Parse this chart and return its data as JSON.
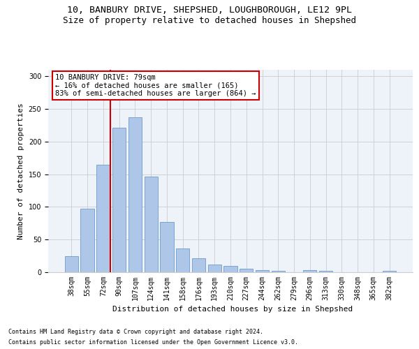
{
  "title1": "10, BANBURY DRIVE, SHEPSHED, LOUGHBOROUGH, LE12 9PL",
  "title2": "Size of property relative to detached houses in Shepshed",
  "xlabel": "Distribution of detached houses by size in Shepshed",
  "ylabel": "Number of detached properties",
  "bar_labels": [
    "38sqm",
    "55sqm",
    "72sqm",
    "90sqm",
    "107sqm",
    "124sqm",
    "141sqm",
    "158sqm",
    "176sqm",
    "193sqm",
    "210sqm",
    "227sqm",
    "244sqm",
    "262sqm",
    "279sqm",
    "296sqm",
    "313sqm",
    "330sqm",
    "348sqm",
    "365sqm",
    "382sqm"
  ],
  "bar_values": [
    25,
    97,
    165,
    221,
    237,
    146,
    77,
    36,
    21,
    12,
    10,
    5,
    3,
    2,
    0,
    3,
    2,
    0,
    0,
    0,
    2
  ],
  "bar_color": "#aec6e8",
  "bar_edge_color": "#5a8fc4",
  "vline_x_idx": 2,
  "vline_color": "#cc0000",
  "annotation_text": "10 BANBURY DRIVE: 79sqm\n← 16% of detached houses are smaller (165)\n83% of semi-detached houses are larger (864) →",
  "annotation_box_color": "#ffffff",
  "annotation_box_edge": "#cc0000",
  "ylim": [
    0,
    310
  ],
  "yticks": [
    0,
    50,
    100,
    150,
    200,
    250,
    300
  ],
  "grid_color": "#cccccc",
  "bg_color": "#eef2f9",
  "footer1": "Contains HM Land Registry data © Crown copyright and database right 2024.",
  "footer2": "Contains public sector information licensed under the Open Government Licence v3.0.",
  "title1_fontsize": 9.5,
  "title2_fontsize": 9,
  "axis_label_fontsize": 8,
  "tick_fontsize": 7,
  "annotation_fontsize": 7.5,
  "footer_fontsize": 6
}
